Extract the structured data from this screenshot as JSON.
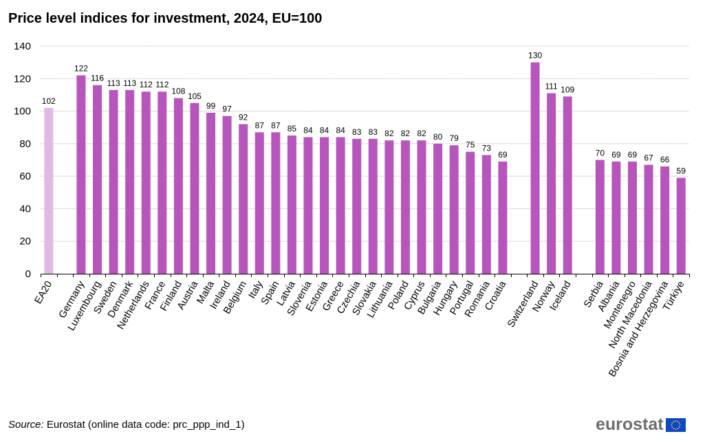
{
  "title": "Price level indices for investment, 2024, EU=100",
  "source": {
    "label": "Source:",
    "text": " Eurostat (online data code: prc_ppp_ind_1)"
  },
  "logo": {
    "text": "eurostat",
    "icon": "eu-flag-icon"
  },
  "colors": {
    "main": "#b656bd",
    "aggregate": "#e0b9e3",
    "grid": "#c8c8c8",
    "axis": "#000000"
  },
  "chart_data": {
    "type": "bar",
    "title": "Price level indices for investment, 2024, EU=100",
    "xlabel": "",
    "ylabel": "",
    "ylim": [
      0,
      140
    ],
    "yticks": [
      0,
      20,
      40,
      60,
      80,
      100,
      120,
      140
    ],
    "grid": true,
    "legend": "none",
    "groups": [
      {
        "categories": [
          "EA20"
        ],
        "values": [
          102
        ],
        "style": "aggregate"
      },
      {
        "categories": [
          "Germany",
          "Luxembourg",
          "Sweden",
          "Denmark",
          "Netherlands",
          "France",
          "Finland",
          "Austria",
          "Malta",
          "Ireland",
          "Belgium",
          "Italy",
          "Spain",
          "Latvia",
          "Slovenia",
          "Estonia",
          "Greece",
          "Czechia",
          "Slovakia",
          "Lithuania",
          "Poland",
          "Cyprus",
          "Bulgaria",
          "Hungary",
          "Portugal",
          "Romania",
          "Croatia"
        ],
        "values": [
          122,
          116,
          113,
          113,
          112,
          112,
          108,
          105,
          99,
          97,
          92,
          87,
          87,
          85,
          84,
          84,
          84,
          83,
          83,
          82,
          82,
          82,
          80,
          79,
          75,
          73,
          69
        ],
        "style": "main"
      },
      {
        "categories": [
          "Switzerland",
          "Norway",
          "Iceland"
        ],
        "values": [
          130,
          111,
          109
        ],
        "style": "main"
      },
      {
        "categories": [
          "Serbia",
          "Albania",
          "Montenegro",
          "North Macedonia",
          "Bosnia and Herzegovina",
          "Türkiye"
        ],
        "values": [
          70,
          69,
          69,
          67,
          66,
          59
        ],
        "style": "main"
      }
    ]
  }
}
